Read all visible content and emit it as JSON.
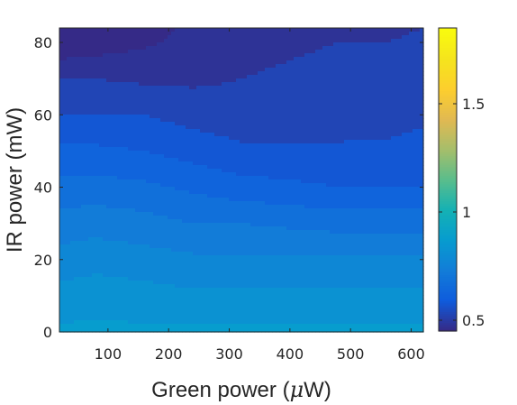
{
  "chart_data": {
    "type": "heatmap",
    "xlabel_parts": [
      "Green power (",
      "μ",
      "W)"
    ],
    "ylabel": "IR power (mW)",
    "xlim": [
      20,
      620
    ],
    "ylim": [
      0,
      84
    ],
    "x_ticks": [
      100,
      200,
      300,
      400,
      500,
      600
    ],
    "y_ticks": [
      0,
      20,
      40,
      60,
      80
    ],
    "colorbar": {
      "colormap": "parula",
      "range": [
        0.45,
        1.85
      ],
      "ticks": [
        0.5,
        1,
        1.5
      ]
    },
    "contour_levels": [
      0.45,
      0.5,
      0.55,
      0.6,
      0.65,
      0.7,
      0.75,
      0.8,
      0.85
    ],
    "x": [
      20,
      80,
      160,
      240,
      320,
      400,
      480,
      560,
      620
    ],
    "y": [
      0,
      10,
      20,
      30,
      40,
      50,
      60,
      70,
      75,
      80,
      84
    ],
    "z": [
      [
        0.86,
        0.86,
        0.86,
        0.86,
        0.86,
        0.86,
        0.86,
        0.86,
        0.86
      ],
      [
        0.82,
        0.83,
        0.82,
        0.81,
        0.81,
        0.81,
        0.81,
        0.81,
        0.81
      ],
      [
        0.77,
        0.78,
        0.77,
        0.76,
        0.76,
        0.76,
        0.76,
        0.76,
        0.76
      ],
      [
        0.72,
        0.73,
        0.72,
        0.7,
        0.7,
        0.69,
        0.68,
        0.68,
        0.68
      ],
      [
        0.67,
        0.67,
        0.66,
        0.64,
        0.62,
        0.61,
        0.6,
        0.6,
        0.6
      ],
      [
        0.61,
        0.61,
        0.6,
        0.58,
        0.56,
        0.56,
        0.56,
        0.56,
        0.57
      ],
      [
        0.55,
        0.55,
        0.55,
        0.53,
        0.52,
        0.52,
        0.52,
        0.53,
        0.54
      ],
      [
        0.5,
        0.5,
        0.49,
        0.49,
        0.5,
        0.51,
        0.52,
        0.52,
        0.53
      ],
      [
        0.45,
        0.46,
        0.47,
        0.48,
        0.49,
        0.5,
        0.51,
        0.51,
        0.52
      ],
      [
        0.44,
        0.42,
        0.44,
        0.47,
        0.48,
        0.49,
        0.5,
        0.5,
        0.51
      ],
      [
        0.43,
        0.42,
        0.43,
        0.46,
        0.47,
        0.48,
        0.49,
        0.49,
        0.5
      ]
    ]
  }
}
